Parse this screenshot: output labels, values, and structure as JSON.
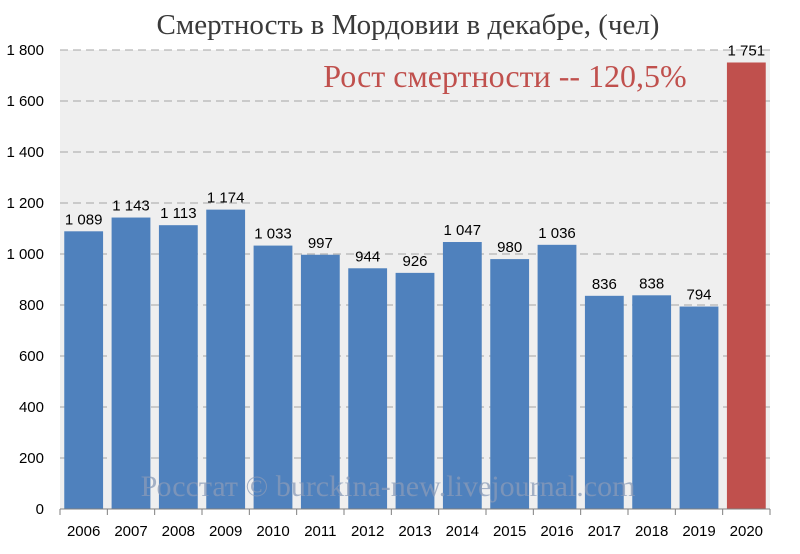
{
  "colors": {
    "plot_bg": "#efefef",
    "bar": "#4f81bd",
    "bar_highlight": "#c0504d",
    "grid": "#a6a6a6",
    "subtitle": "#c0504d"
  },
  "chart_data": {
    "type": "bar",
    "title": "Смертность в Мордовии в декабре, (чел)",
    "subtitle": "Рост смертности -- 120,5%",
    "watermark": "Росстат © burckina-new.livejournal.com",
    "xlabel": "",
    "ylabel": "",
    "ylim": [
      0,
      1800
    ],
    "grid": true,
    "yticks": [
      "0",
      "200",
      "400",
      "600",
      "800",
      "1 000",
      "1 200",
      "1 400",
      "1 600",
      "1 800"
    ],
    "ytick_values": [
      0,
      200,
      400,
      600,
      800,
      1000,
      1200,
      1400,
      1600,
      1800
    ],
    "categories": [
      "2006",
      "2007",
      "2008",
      "2009",
      "2010",
      "2011",
      "2012",
      "2013",
      "2014",
      "2015",
      "2016",
      "2017",
      "2018",
      "2019",
      "2020"
    ],
    "values": [
      1089,
      1143,
      1113,
      1174,
      1033,
      997,
      944,
      926,
      1047,
      980,
      1036,
      836,
      838,
      794,
      1751
    ],
    "data_labels": [
      "1 089",
      "1 143",
      "1 113",
      "1 174",
      "1 033",
      "997",
      "944",
      "926",
      "1 047",
      "980",
      "1 036",
      "836",
      "838",
      "794",
      "1 751"
    ],
    "highlight_category": "2020"
  }
}
